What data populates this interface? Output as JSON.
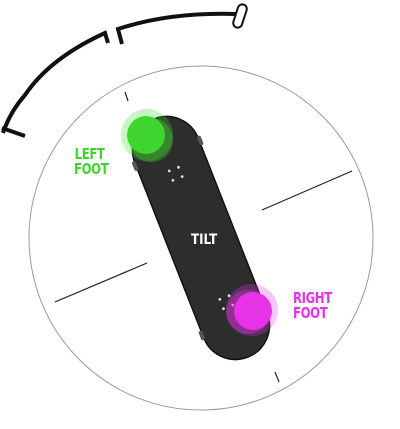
{
  "labels": {
    "left_foot_line1": "LEFT",
    "left_foot_line2": "FOOT",
    "right_foot_line1": "RIGHT",
    "right_foot_line2": "FOOT",
    "board": "TILT"
  },
  "colors": {
    "left_foot": "#3ed62e",
    "right_foot": "#e832e8",
    "board": "#2d2d2d",
    "outline": "#111111",
    "ring": "#9a9a9a"
  }
}
